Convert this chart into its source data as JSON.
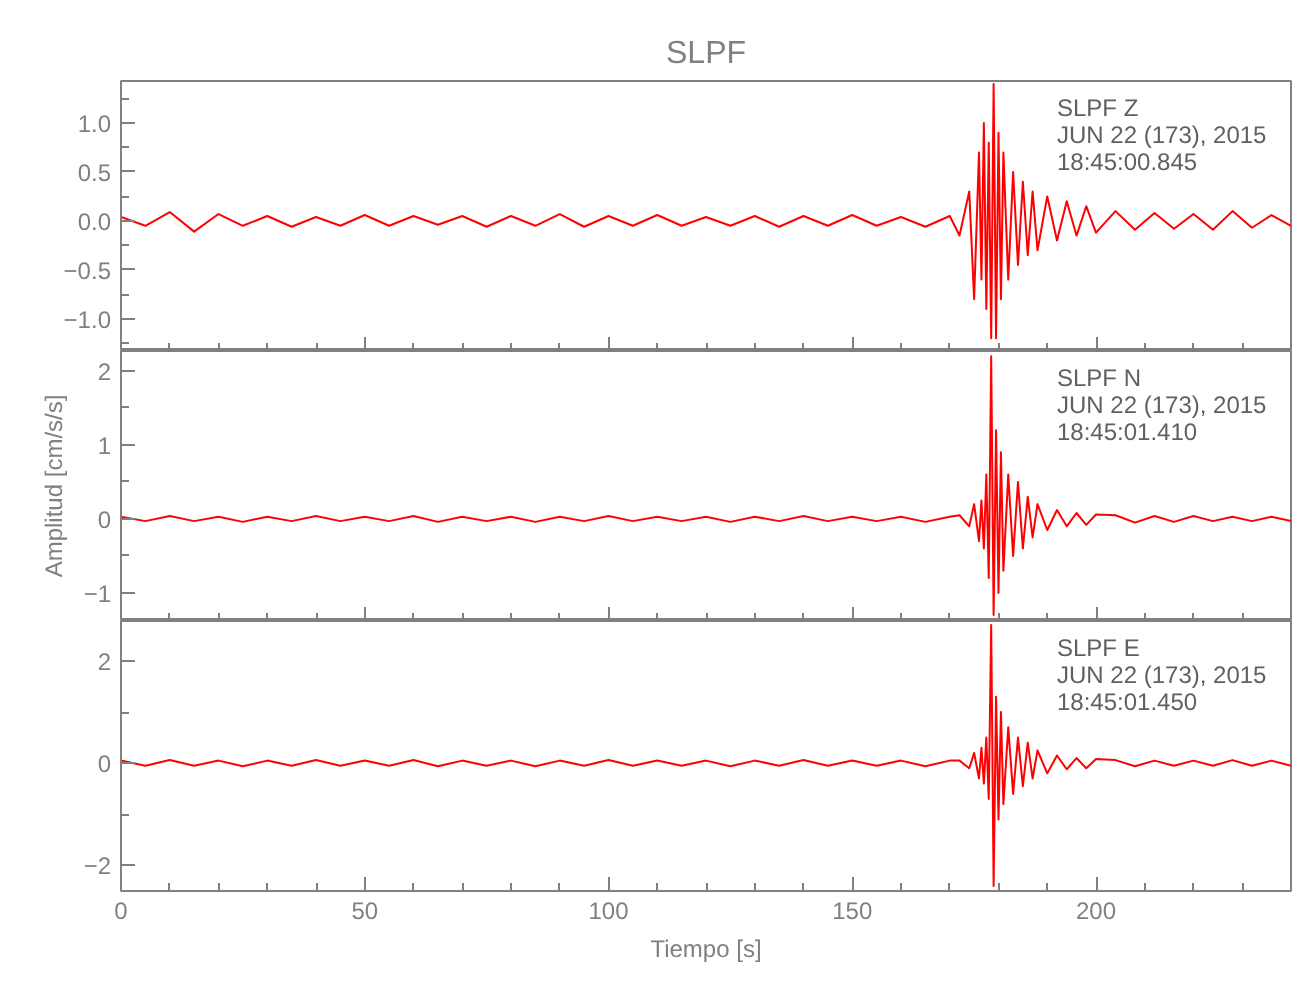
{
  "chart_data": [
    {
      "type": "line",
      "title": "SLPF",
      "tick_labels": "y",
      "xlim": [
        0,
        240
      ],
      "xticks": [
        0,
        50,
        100,
        150,
        200
      ],
      "ylim": [
        -1.33,
        1.43
      ],
      "yticks": [
        {
          "value": -1.0,
          "label": "−1.0"
        },
        {
          "value": -0.5,
          "label": "−0.5"
        },
        {
          "value": 0,
          "label": "0.0"
        },
        {
          "value": 0.5,
          "label": "0.5"
        },
        {
          "value": 1.0,
          "label": "1.0"
        }
      ],
      "annotations": [
        "SLPF   Z",
        "JUN 22 (173), 2015",
        "18:45:00.845"
      ],
      "x": [
        0,
        5,
        10,
        15,
        20,
        25,
        30,
        35,
        40,
        45,
        50,
        55,
        60,
        65,
        70,
        75,
        80,
        85,
        90,
        95,
        100,
        105,
        110,
        115,
        120,
        125,
        130,
        135,
        140,
        145,
        150,
        155,
        160,
        165,
        170,
        172,
        174,
        175,
        176,
        176.5,
        177,
        177.5,
        178,
        178.5,
        179,
        179.5,
        180,
        180.5,
        181,
        182,
        183,
        184,
        185,
        186,
        187,
        188,
        190,
        192,
        194,
        196,
        198,
        200,
        204,
        208,
        212,
        216,
        220,
        224,
        228,
        232,
        236,
        240
      ],
      "series": [
        {
          "color": "#ff0000",
          "values": [
            0.04,
            -0.05,
            0.09,
            -0.11,
            0.07,
            -0.05,
            0.05,
            -0.06,
            0.04,
            -0.05,
            0.06,
            -0.05,
            0.05,
            -0.04,
            0.05,
            -0.06,
            0.05,
            -0.05,
            0.07,
            -0.06,
            0.05,
            -0.05,
            0.06,
            -0.05,
            0.04,
            -0.05,
            0.05,
            -0.06,
            0.05,
            -0.05,
            0.06,
            -0.05,
            0.04,
            -0.06,
            0.05,
            -0.15,
            0.3,
            -0.8,
            0.7,
            -0.6,
            1.0,
            -0.9,
            0.8,
            -1.2,
            1.4,
            -1.2,
            0.9,
            -0.8,
            0.7,
            -0.6,
            0.5,
            -0.45,
            0.4,
            -0.35,
            0.3,
            -0.3,
            0.25,
            -0.2,
            0.2,
            -0.15,
            0.15,
            -0.12,
            0.1,
            -0.09,
            0.08,
            -0.08,
            0.07,
            -0.09,
            0.1,
            -0.07,
            0.06,
            -0.05
          ]
        }
      ]
    },
    {
      "type": "line",
      "ylabel": "Amplitud [cm/s/s]",
      "tick_labels": "y",
      "xlim": [
        0,
        240
      ],
      "xticks": [
        0,
        50,
        100,
        150,
        200
      ],
      "ylim": [
        -1.38,
        2.27
      ],
      "yticks": [
        {
          "value": -1,
          "label": "−1"
        },
        0,
        1,
        2
      ],
      "annotations": [
        "SLPF   N",
        "JUN 22 (173), 2015",
        "18:45:01.410"
      ],
      "x": [
        0,
        5,
        10,
        15,
        20,
        25,
        30,
        35,
        40,
        45,
        50,
        55,
        60,
        65,
        70,
        75,
        80,
        85,
        90,
        95,
        100,
        105,
        110,
        115,
        120,
        125,
        130,
        135,
        140,
        145,
        150,
        155,
        160,
        165,
        170,
        172,
        174,
        175,
        176,
        176.5,
        177,
        177.5,
        178,
        178.5,
        179,
        179.5,
        180,
        180.5,
        181,
        182,
        183,
        184,
        185,
        186,
        187,
        188,
        190,
        192,
        194,
        196,
        198,
        200,
        204,
        208,
        212,
        216,
        220,
        224,
        228,
        232,
        236,
        240
      ],
      "series": [
        {
          "color": "#ff0000",
          "values": [
            0.03,
            -0.03,
            0.04,
            -0.03,
            0.03,
            -0.04,
            0.03,
            -0.03,
            0.04,
            -0.03,
            0.03,
            -0.03,
            0.04,
            -0.04,
            0.03,
            -0.03,
            0.03,
            -0.04,
            0.03,
            -0.03,
            0.04,
            -0.03,
            0.03,
            -0.03,
            0.03,
            -0.04,
            0.03,
            -0.03,
            0.04,
            -0.03,
            0.03,
            -0.03,
            0.03,
            -0.04,
            0.03,
            0.05,
            -0.1,
            0.2,
            -0.3,
            0.25,
            -0.4,
            0.6,
            -0.8,
            2.2,
            -1.3,
            1.2,
            -1.0,
            0.9,
            -0.7,
            0.6,
            -0.5,
            0.5,
            -0.4,
            0.3,
            -0.25,
            0.2,
            -0.15,
            0.12,
            -0.1,
            0.08,
            -0.08,
            0.06,
            0.05,
            -0.05,
            0.04,
            -0.04,
            0.04,
            -0.03,
            0.03,
            -0.03,
            0.03,
            -0.03
          ]
        }
      ]
    },
    {
      "type": "line",
      "xlabel": "Tiempo [s]",
      "xlim": [
        0,
        240
      ],
      "xticks": [
        0,
        50,
        100,
        150,
        200
      ],
      "ylim": [
        -2.5,
        2.78
      ],
      "yticks": [
        {
          "value": -2,
          "label": "−2"
        },
        0,
        2
      ],
      "annotations": [
        "SLPF   E",
        "JUN 22 (173), 2015",
        "18:45:01.450"
      ],
      "x": [
        0,
        5,
        10,
        15,
        20,
        25,
        30,
        35,
        40,
        45,
        50,
        55,
        60,
        65,
        70,
        75,
        80,
        85,
        90,
        95,
        100,
        105,
        110,
        115,
        120,
        125,
        130,
        135,
        140,
        145,
        150,
        155,
        160,
        165,
        170,
        172,
        174,
        175,
        176,
        176.5,
        177,
        177.5,
        178,
        178.5,
        179,
        179.5,
        180,
        180.5,
        181,
        182,
        183,
        184,
        185,
        186,
        187,
        188,
        190,
        192,
        194,
        196,
        198,
        200,
        204,
        208,
        212,
        216,
        220,
        224,
        228,
        232,
        236,
        240
      ],
      "series": [
        {
          "color": "#ff0000",
          "values": [
            0.05,
            -0.05,
            0.06,
            -0.05,
            0.05,
            -0.06,
            0.05,
            -0.05,
            0.06,
            -0.05,
            0.05,
            -0.05,
            0.06,
            -0.06,
            0.05,
            -0.05,
            0.05,
            -0.06,
            0.05,
            -0.05,
            0.06,
            -0.05,
            0.05,
            -0.05,
            0.05,
            -0.06,
            0.05,
            -0.05,
            0.06,
            -0.05,
            0.05,
            -0.05,
            0.05,
            -0.06,
            0.05,
            0.05,
            -0.1,
            0.2,
            -0.3,
            0.3,
            -0.4,
            0.5,
            -0.7,
            2.7,
            -2.4,
            1.3,
            -1.1,
            1.0,
            -0.8,
            0.7,
            -0.6,
            0.5,
            -0.45,
            0.4,
            -0.3,
            0.25,
            -0.2,
            0.15,
            -0.12,
            0.1,
            -0.1,
            0.08,
            0.06,
            -0.06,
            0.05,
            -0.05,
            0.05,
            -0.05,
            0.06,
            -0.05,
            0.05,
            -0.05
          ]
        }
      ]
    }
  ]
}
